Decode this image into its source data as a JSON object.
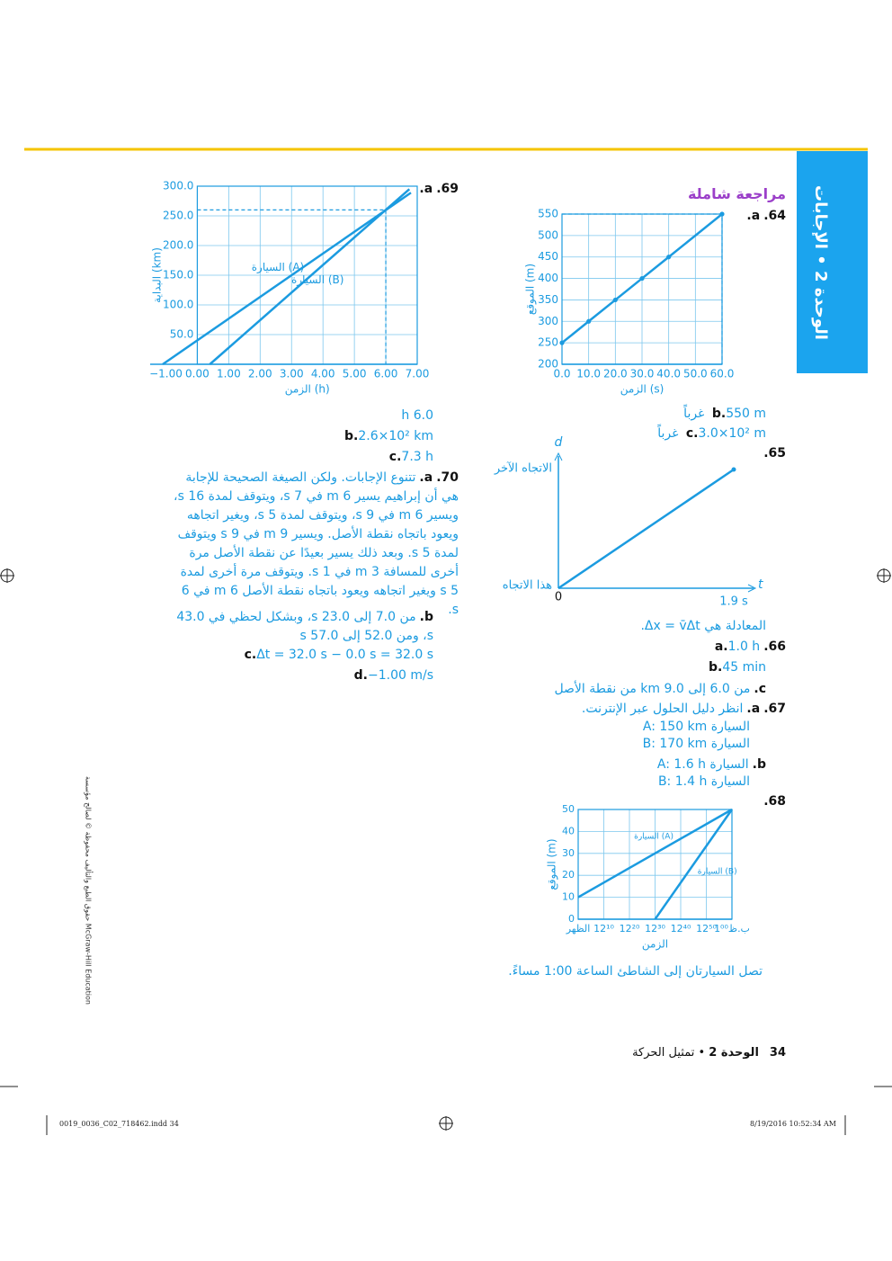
{
  "header": {
    "tab": "الوحدة 2 • الإجابات",
    "title": "مراجعة شاملة"
  },
  "q64": {
    "num": "64.",
    "a": "a.",
    "b": "b.",
    "b_text": "550 m غرباً",
    "c": "c.",
    "c_text": "3.0×10² m غرباً",
    "chart": {
      "type": "line",
      "xlabel": "الزمن (s)",
      "ylabel": "الموقع (m)",
      "xlim": [
        0,
        60
      ],
      "ylim": [
        200,
        550
      ],
      "xticks": [
        {
          "value": 0,
          "label": "0.0"
        },
        {
          "value": 10,
          "label": "10.0"
        },
        {
          "value": 20,
          "label": "20.0"
        },
        {
          "value": 30,
          "label": "30.0"
        },
        {
          "value": 40,
          "label": "40.0"
        },
        {
          "value": 50,
          "label": "50.0"
        },
        {
          "value": 60,
          "label": "60.0"
        }
      ],
      "yticks": [
        200,
        250,
        300,
        350,
        400,
        450,
        500,
        550
      ],
      "grid": true,
      "markers": true,
      "series": [
        {
          "color": "#1b9be0",
          "x": [
            0,
            10,
            20,
            30,
            40,
            60
          ],
          "values": [
            250,
            300,
            350,
            400,
            450,
            550
          ]
        }
      ],
      "guide": {
        "x": 60,
        "y": 550
      }
    }
  },
  "q65": {
    "num": "65.",
    "d": "d",
    "t": "t",
    "other_dir": "الاتجاه الآخر",
    "this_dir": "هذا الاتجاه",
    "zero": "0",
    "end_time": "1.9 s",
    "equation": "المعادلة هي Δx = v̄Δt."
  },
  "q66": {
    "num": "66.",
    "a": "a.",
    "a_text": "1.0 h",
    "b": "b.",
    "b_text": "45 min",
    "c": "c.",
    "c_text": "من 6.0 إلى 9.0 km من نقطة الأصل"
  },
  "q67": {
    "num": "67.",
    "a": "a.",
    "a_text": "انظر دليل الحلول عبر الإنترنت.",
    "a_line1": "السيارة A: 150 km",
    "a_line2": "السيارة B: 170 km",
    "b": "b.",
    "b_line1": "السيارة A: 1.6 h",
    "b_line2": "السيارة B: 1.4 h"
  },
  "q68": {
    "num": "68.",
    "caption": "تصل السيارتان إلى الشاطئ الساعة 1:00 مساءً.",
    "chart": {
      "type": "line",
      "xlabel": "الزمن",
      "ylabel": "الموقع (m)",
      "xlim": [
        0,
        60
      ],
      "ylim": [
        0,
        50
      ],
      "xticks": [
        {
          "value": 0,
          "label": "الظهر"
        },
        {
          "value": 10,
          "label": "12¹⁰"
        },
        {
          "value": 20,
          "label": "12²⁰"
        },
        {
          "value": 30,
          "label": "12³⁰"
        },
        {
          "value": 40,
          "label": "12⁴⁰"
        },
        {
          "value": 50,
          "label": "12⁵⁰"
        },
        {
          "value": 60,
          "label": "1⁰⁰ب.ظ"
        }
      ],
      "yticks": [
        0,
        10,
        20,
        30,
        40,
        50
      ],
      "grid": true,
      "series": [
        {
          "name": "السيارة (A)",
          "color": "#1b9be0",
          "x": [
            0,
            60
          ],
          "values": [
            10,
            50
          ]
        },
        {
          "name": "السيارة (B)",
          "color": "#1b9be0",
          "x": [
            30,
            60
          ],
          "values": [
            0,
            50
          ]
        }
      ]
    }
  },
  "q69": {
    "num": "69.",
    "a": "a.",
    "a_text": "6.0 h",
    "b": "b.",
    "b_text": "2.6×10² km",
    "c": "c.",
    "c_text": "7.3 h",
    "chart": {
      "type": "line",
      "xlabel": "الزمن (h)",
      "ylabel": "البداية (km)",
      "xlim": [
        -1.5,
        7
      ],
      "ylim": [
        0,
        300
      ],
      "xticks": [
        {
          "value": -1,
          "label": "−1.00"
        },
        {
          "value": 0,
          "label": "0.00"
        },
        {
          "value": 1,
          "label": "1.00"
        },
        {
          "value": 2,
          "label": "2.00"
        },
        {
          "value": 3,
          "label": "3.00"
        },
        {
          "value": 4,
          "label": "4.00"
        },
        {
          "value": 5,
          "label": "5.00"
        },
        {
          "value": 6,
          "label": "6.00"
        },
        {
          "value": 7,
          "label": "7.00"
        }
      ],
      "yticks": [
        {
          "value": 50,
          "label": "50.0"
        },
        {
          "value": 100,
          "label": "100.0"
        },
        {
          "value": 150,
          "label": "150.0"
        },
        {
          "value": 200,
          "label": "200.0"
        },
        {
          "value": 250,
          "label": "250.0"
        },
        {
          "value": 300,
          "label": "300.0"
        }
      ],
      "grid": true,
      "series": [
        {
          "name": "السيارة (A)",
          "color": "#1b9be0",
          "x": [
            -1.1,
            6.8
          ],
          "values": [
            0,
            289
          ]
        },
        {
          "name": "السيارة (B)",
          "color": "#1b9be0",
          "x": [
            0.4,
            6.75
          ],
          "values": [
            0,
            295
          ]
        }
      ],
      "guide": {
        "x": 6,
        "y": 260
      }
    }
  },
  "q70": {
    "num": "70.",
    "a": "a.",
    "a_text": "تتنوع الإجابات. ولكن الصيغة الصحيحة للإجابة هي أن إبراهيم يسير 6 m في 7 s، ويتوقف لمدة 16 s، ويسير 6 m في 9 s، ويتوقف لمدة 5 s، ويغير اتجاهه ويعود باتجاه نقطة الأصل. ويسير 9 m في 9 s ويتوقف لمدة 5 s. وبعد ذلك يسير بعيدًا عن نقطة الأصل مرة أخرى للمسافة 3 m في 1 s. ويتوقف مرة أخرى لمدة 5 s ويغير اتجاهه ويعود باتجاه نقطة الأصل 6 m في 6 s.",
    "b": "b.",
    "b_text": "من 7.0 إلى 23.0 s، وبشكل لحظي في 43.0 s، ومن 52.0 إلى 57.0 s",
    "c": "c.",
    "c_text": "Δt = 32.0 s − 0.0 s = 32.0 s",
    "d": "d.",
    "d_text": "−1.00 m/s"
  },
  "footer": {
    "page": "34",
    "unit": "الوحدة 2",
    "unit_title": "تمثيل الحركة",
    "copyright": "حقوق الطبع والتأليف محفوظة © لصالح مؤسسة McGraw-Hill Education",
    "file": "0019_0036_C02_718462.indd 34",
    "date": "8/19/2016 10:52:34 AM"
  }
}
